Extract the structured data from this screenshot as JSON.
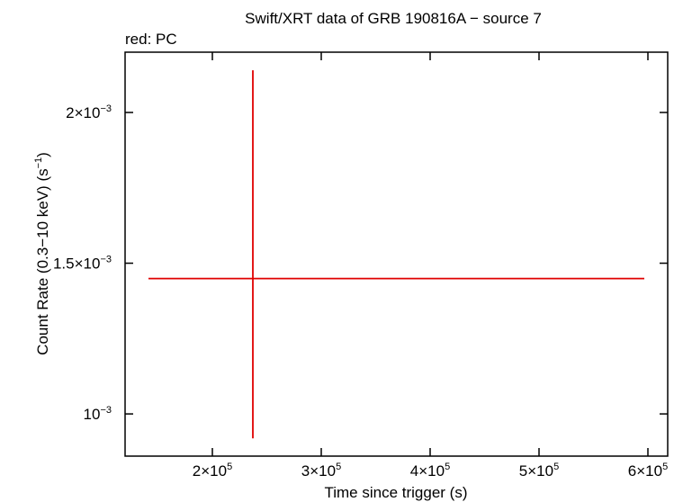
{
  "chart_data": {
    "type": "errorbar",
    "title": "Swift/XRT data of GRB 190816A − source 7",
    "annotation": "red: PC",
    "x_label": "Time since trigger (s)",
    "y_label": [
      "Count Rate (0.3−10 keV) (s",
      "−1",
      ")"
    ],
    "xlim": [
      119835,
      618182
    ],
    "ylim": [
      0.00086,
      0.0022
    ],
    "xticks": [
      {
        "value": 200000,
        "label": "2×10",
        "exponent": "5"
      },
      {
        "value": 300000,
        "label": "3×10",
        "exponent": "5"
      },
      {
        "value": 400000,
        "label": "4×10",
        "exponent": "5"
      },
      {
        "value": 500000,
        "label": "5×10",
        "exponent": "5"
      },
      {
        "value": 600000,
        "label": "6×10",
        "exponent": "5"
      }
    ],
    "yticks": [
      {
        "value": 0.001,
        "label": "10",
        "exponent": "−3"
      },
      {
        "value": 0.0015,
        "label": "1.5×10",
        "exponent": "−3"
      },
      {
        "value": 0.002,
        "label": "2×10",
        "exponent": "−3"
      }
    ],
    "series": [
      {
        "name": "PC",
        "color": "#e00000",
        "x": [
          237190
        ],
        "values": [
          0.001449
        ],
        "xerr_minus": [
          95868
        ],
        "xerr_plus": [
          359504
        ],
        "yerr_minus": [
          0.00053
        ],
        "yerr_plus": [
          0.000691
        ]
      }
    ]
  }
}
